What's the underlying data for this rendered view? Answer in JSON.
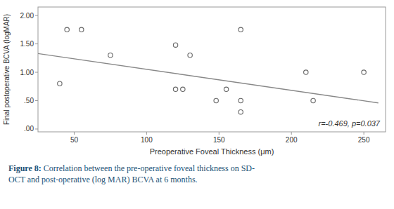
{
  "chart_data": {
    "type": "scatter",
    "xlabel": "Preoperative Foveal Thickness (μm)",
    "ylabel": "Final postoperative BCVA (logMAR)",
    "annotation": "r=-0.469, p=0.037",
    "caption_label": "Figure 8:",
    "caption": " Correlation between the pre-operative foveal thickness on SD-\nOCT and post-operative (log MAR) BCVA at 6 months.",
    "series": [
      {
        "type": "scatter",
        "marker": "open-circle",
        "color": "#666666",
        "x": [
          45,
          55,
          75,
          40,
          120,
          125,
          130,
          120,
          148,
          155,
          165,
          165,
          165,
          210,
          215,
          250
        ],
        "values": [
          1.75,
          1.75,
          1.3,
          0.8,
          0.7,
          0.7,
          1.3,
          1.48,
          0.5,
          0.7,
          0.5,
          0.3,
          1.75,
          1.0,
          0.5,
          1.0
        ]
      },
      {
        "type": "line",
        "line_style": "solid",
        "color": "#888888",
        "x": [
          25,
          260
        ],
        "values": [
          1.33,
          0.46
        ]
      }
    ],
    "xlim": [
      25,
      265
    ],
    "ylim": [
      -0.05,
      2.15
    ],
    "xticks": [
      50,
      100,
      150,
      200,
      250
    ],
    "yticks": [
      {
        "value": 0.0,
        "label": ".00"
      },
      {
        "value": 0.5,
        "label": ".50"
      },
      {
        "value": 1.0,
        "label": "1.00"
      },
      {
        "value": 1.5,
        "label": "1.50"
      },
      {
        "value": 2.0,
        "label": "2.00"
      }
    ],
    "grid": false
  }
}
